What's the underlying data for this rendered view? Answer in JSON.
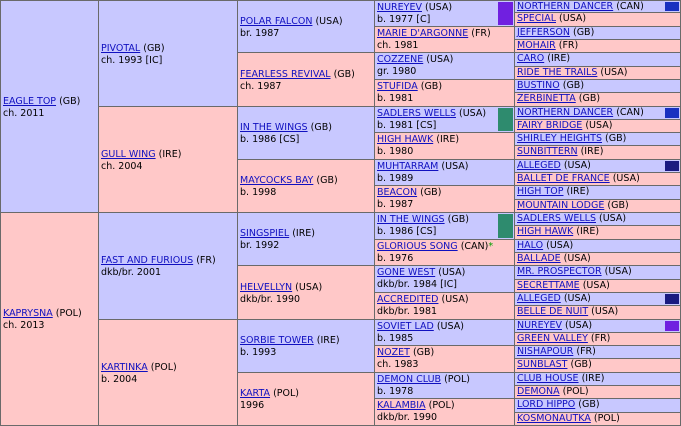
{
  "colors": {
    "male_bg": "#c8c8ff",
    "female_bg": "#ffc8c8",
    "link": "#1010c0",
    "marker_purple": "#7020e0",
    "marker_teal": "#2e8b6e",
    "marker_navy": "#1830c0"
  },
  "gen1": [
    {
      "name": "EAGLE TOP",
      "country": "(GB)",
      "desc": "ch. 2011"
    },
    {
      "name": "KAPRYSNA",
      "country": "(POL)",
      "desc": "ch. 2013"
    }
  ],
  "gen2": [
    {
      "name": "PIVOTAL",
      "country": "(GB)",
      "desc": "ch. 1993 [IC]"
    },
    {
      "name": "GULL WING",
      "country": "(IRE)",
      "desc": "ch. 2004"
    },
    {
      "name": "FAST AND FURIOUS",
      "country": "(FR)",
      "desc": "dkb/br. 2001"
    },
    {
      "name": "KARTINKA",
      "country": "(POL)",
      "desc": "b. 2004"
    }
  ],
  "gen3": [
    {
      "name": "POLAR FALCON",
      "country": "(USA)",
      "desc": "br. 1987"
    },
    {
      "name": "FEARLESS REVIVAL",
      "country": "(GB)",
      "desc": "ch. 1987"
    },
    {
      "name": "IN THE WINGS",
      "country": "(GB)",
      "desc": "b. 1986 [CS]"
    },
    {
      "name": "MAYCOCKS BAY",
      "country": "(GB)",
      "desc": "b. 1998"
    },
    {
      "name": "SINGSPIEL",
      "country": "(IRE)",
      "desc": "br. 1992"
    },
    {
      "name": "HELVELLYN",
      "country": "(USA)",
      "desc": "dkb/br. 1990"
    },
    {
      "name": "SORBIE TOWER",
      "country": "(IRE)",
      "desc": "b. 1993"
    },
    {
      "name": "KARTA",
      "country": "(POL)",
      "desc": "1996"
    }
  ],
  "gen4": [
    {
      "name": "NUREYEV",
      "country": "(USA)",
      "desc": "b. 1977 [C]"
    },
    {
      "name": "MARIE D'ARGONNE",
      "country": "(FR)",
      "desc": "ch. 1981"
    },
    {
      "name": "COZZENE",
      "country": "(USA)",
      "desc": "gr. 1980"
    },
    {
      "name": "STUFIDA",
      "country": "(GB)",
      "desc": "b. 1981"
    },
    {
      "name": "SADLERS WELLS",
      "country": "(USA)",
      "desc": "b. 1981 [CS]"
    },
    {
      "name": "HIGH HAWK",
      "country": "(IRE)",
      "desc": "b. 1980"
    },
    {
      "name": "MUHTARRAM",
      "country": "(USA)",
      "desc": "b. 1989"
    },
    {
      "name": "BEACON",
      "country": "(GB)",
      "desc": "b. 1987"
    },
    {
      "name": "IN THE WINGS",
      "country": "(GB)",
      "desc": "b. 1986 [CS]"
    },
    {
      "name": "GLORIOUS SONG",
      "country": "(CAN)",
      "desc": "b. 1976",
      "star": "*"
    },
    {
      "name": "GONE WEST",
      "country": "(USA)",
      "desc": "dkb/br. 1984 [IC]"
    },
    {
      "name": "ACCREDITED",
      "country": "(USA)",
      "desc": "dkb/br. 1981"
    },
    {
      "name": "SOVIET LAD",
      "country": "(USA)",
      "desc": "b. 1985"
    },
    {
      "name": "NOZET",
      "country": "(GB)",
      "desc": "ch. 1983"
    },
    {
      "name": "DEMON CLUB",
      "country": "(POL)",
      "desc": "b. 1978"
    },
    {
      "name": "KALAMBIA",
      "country": "(POL)",
      "desc": "dkb/br. 1990"
    }
  ],
  "gen5": [
    {
      "name": "NORTHERN DANCER",
      "country": "(CAN)"
    },
    {
      "name": "SPECIAL",
      "country": "(USA)"
    },
    {
      "name": "JEFFERSON",
      "country": "(GB)"
    },
    {
      "name": "MOHAIR",
      "country": "(FR)"
    },
    {
      "name": "CARO",
      "country": "(IRE)"
    },
    {
      "name": "RIDE THE TRAILS",
      "country": "(USA)"
    },
    {
      "name": "BUSTINO",
      "country": "(GB)"
    },
    {
      "name": "ZERBINETTA",
      "country": "(GB)"
    },
    {
      "name": "NORTHERN DANCER",
      "country": "(CAN)"
    },
    {
      "name": "FAIRY BRIDGE",
      "country": "(USA)"
    },
    {
      "name": "SHIRLEY HEIGHTS",
      "country": "(GB)"
    },
    {
      "name": "SUNBITTERN",
      "country": "(IRE)"
    },
    {
      "name": "ALLEGED",
      "country": "(USA)"
    },
    {
      "name": "BALLET DE FRANCE",
      "country": "(USA)"
    },
    {
      "name": "HIGH TOP",
      "country": "(IRE)"
    },
    {
      "name": "MOUNTAIN LODGE",
      "country": "(GB)"
    },
    {
      "name": "SADLERS WELLS",
      "country": "(USA)"
    },
    {
      "name": "HIGH HAWK",
      "country": "(IRE)"
    },
    {
      "name": "HALO",
      "country": "(USA)"
    },
    {
      "name": "BALLADE",
      "country": "(USA)"
    },
    {
      "name": "MR. PROSPECTOR",
      "country": "(USA)"
    },
    {
      "name": "SECRETTAME",
      "country": "(USA)"
    },
    {
      "name": "ALLEGED",
      "country": "(USA)"
    },
    {
      "name": "BELLE DE NUIT",
      "country": "(USA)"
    },
    {
      "name": "NUREYEV",
      "country": "(USA)"
    },
    {
      "name": "GREEN VALLEY",
      "country": "(FR)"
    },
    {
      "name": "NISHAPOUR",
      "country": "(FR)"
    },
    {
      "name": "SUNBLAST",
      "country": "(GB)"
    },
    {
      "name": "CLUB HOUSE",
      "country": "(IRE)"
    },
    {
      "name": "DEMONA",
      "country": "(POL)"
    },
    {
      "name": "LORD HIPPO",
      "country": "(GB)"
    },
    {
      "name": "KOSMONAUTKA",
      "country": "(POL)"
    }
  ]
}
